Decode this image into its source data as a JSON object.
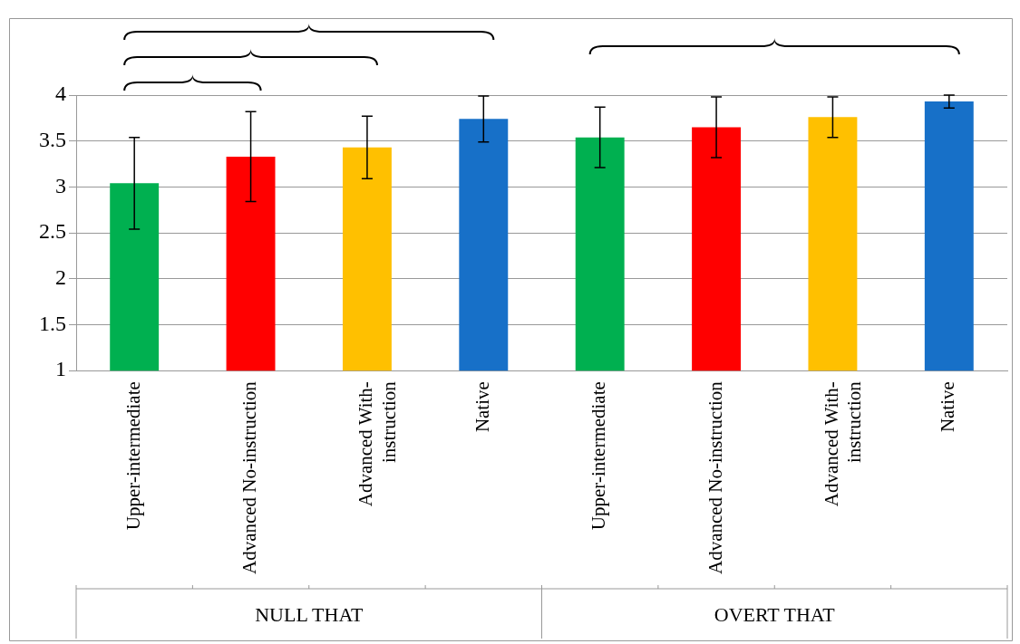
{
  "chart_data": {
    "type": "bar",
    "categories": [
      "Upper-intermediate",
      "Advanced No-instruction",
      "Advanced With-\ninstruction",
      "Native",
      "Upper-intermediate",
      "Advanced No-instruction",
      "Advanced With-\ninstruction",
      "Native"
    ],
    "values": [
      3.04,
      3.33,
      3.43,
      3.74,
      3.54,
      3.65,
      3.76,
      3.93
    ],
    "errors": [
      0.5,
      0.49,
      0.34,
      0.25,
      0.33,
      0.33,
      0.22,
      0.07
    ],
    "colors": [
      "#00b050",
      "#ff0000",
      "#ffc000",
      "#1770c8",
      "#00b050",
      "#ff0000",
      "#ffc000",
      "#1770c8"
    ],
    "ylim": [
      1,
      4
    ],
    "yticks": [
      1,
      1.5,
      2,
      2.5,
      3,
      3.5,
      4
    ],
    "grid": "y",
    "legend": false,
    "annotations": [
      "NULL THAT",
      "OVERT THAT"
    ]
  }
}
